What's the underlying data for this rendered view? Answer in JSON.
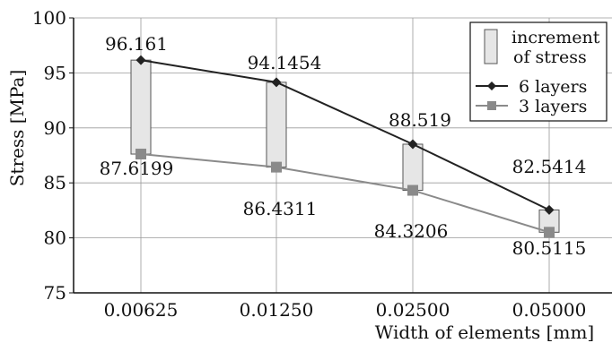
{
  "chart_data": {
    "type": "line",
    "xlabel": "Width of elements  [mm]",
    "ylabel": "Stress  [MPa]",
    "ylim": [
      75,
      100
    ],
    "yticks": [
      75,
      80,
      85,
      90,
      95,
      100
    ],
    "categories": [
      "0.00625",
      "0.01250",
      "0.02500",
      "0.05000"
    ],
    "grid": true,
    "legend_position": "top-right",
    "legend": {
      "increment_label_line1": "increment",
      "increment_label_line2": "of stress"
    },
    "series": [
      {
        "name": "6 layers",
        "marker": "diamond",
        "color": "#222222",
        "values": [
          96.161,
          94.1454,
          88.519,
          82.5414
        ],
        "labels": [
          "96.161",
          "94.1454",
          "88.519",
          "82.5414"
        ]
      },
      {
        "name": "3 layers",
        "marker": "square",
        "color": "#8a8a8a",
        "values": [
          87.6199,
          86.4311,
          84.3206,
          80.5115
        ],
        "labels": [
          "87.6199",
          "86.4311",
          "84.3206",
          "80.5115"
        ]
      }
    ],
    "increment_bar_color": "#e6e6e6"
  }
}
